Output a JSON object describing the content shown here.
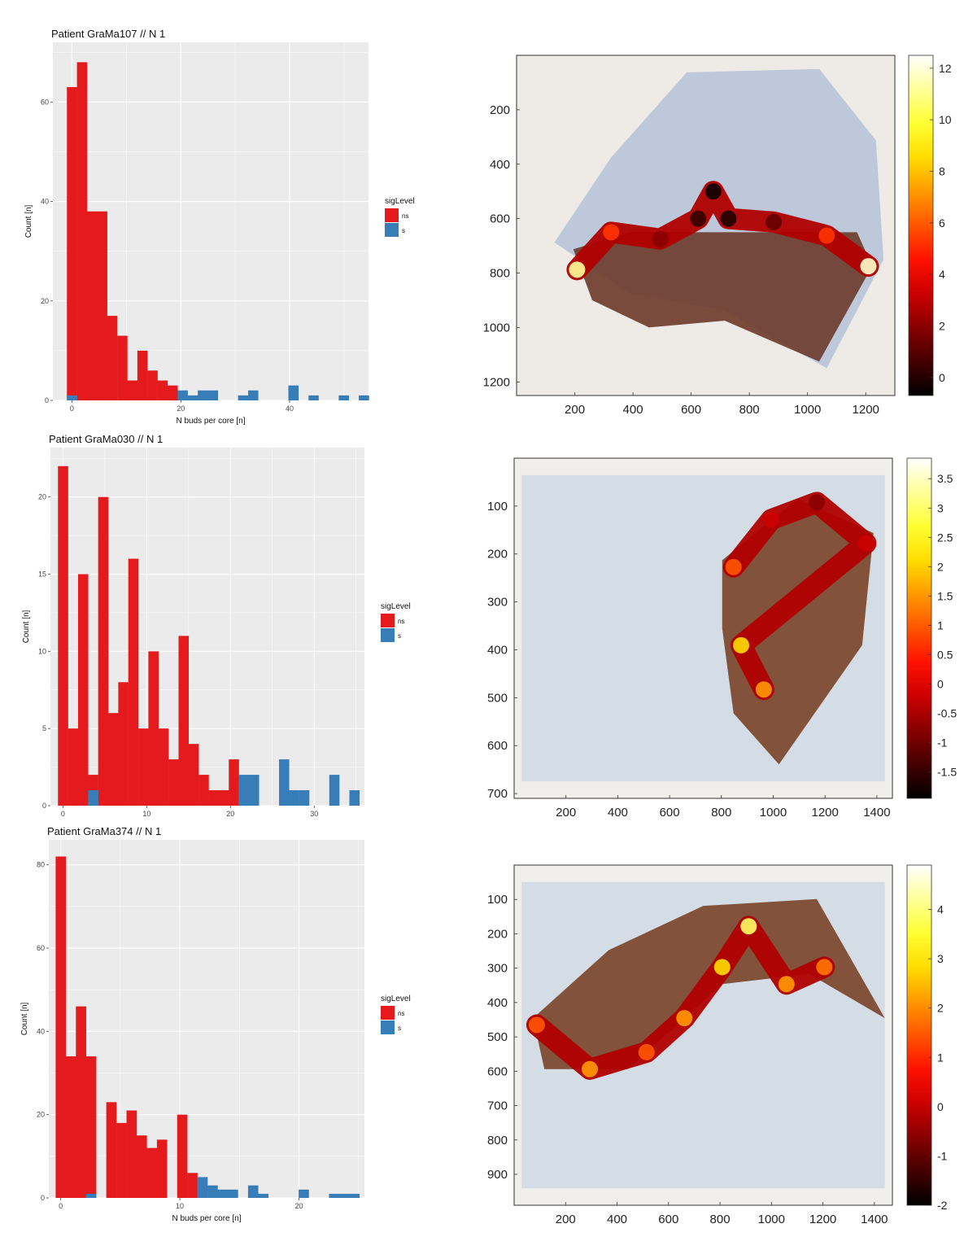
{
  "chart_data": [
    {
      "type": "bar",
      "title": "Patient  GraMa107  //  N 1",
      "xlabel": "N buds per core [n]",
      "ylabel": "Count [n]",
      "xlim": [
        -3.5,
        54.5
      ],
      "ylim": [
        0,
        72
      ],
      "xticks": [
        0,
        20,
        40
      ],
      "yticks": [
        0,
        20,
        40,
        60
      ],
      "binwidth": 1.85,
      "legend_title": "sigLevel",
      "series": [
        {
          "name": "ns",
          "color": "#e41a1c",
          "x": [
            0,
            1.85,
            3.7,
            5.55,
            7.4,
            9.25,
            11.1,
            12.95,
            14.8,
            16.65,
            18.5
          ],
          "values": [
            63,
            68,
            38,
            38,
            17,
            13,
            4,
            10,
            6,
            4,
            3
          ]
        },
        {
          "name": "s",
          "color": "#377eb8",
          "x": [
            0,
            20.35,
            22.2,
            24.05,
            25.9,
            31.45,
            33.3,
            40.7,
            44.4,
            49.95,
            53.65
          ],
          "values": [
            1,
            2,
            1,
            2,
            2,
            1,
            2,
            3,
            1,
            1,
            1
          ]
        }
      ]
    },
    {
      "type": "bar",
      "title": "Patient  GraMa030  //  N 1",
      "xlabel": "",
      "ylabel": "Count [n]",
      "xlim": [
        -1.5,
        36
      ],
      "ylim": [
        0,
        23.2
      ],
      "xticks": [
        0,
        10,
        20,
        30
      ],
      "yticks": [
        0,
        5,
        10,
        15,
        20
      ],
      "binwidth": 1.2,
      "legend_title": "sigLevel",
      "series": [
        {
          "name": "ns",
          "color": "#e41a1c",
          "x": [
            0,
            1.2,
            2.4,
            3.6,
            4.8,
            6.0,
            7.2,
            8.4,
            9.6,
            10.8,
            12.0,
            13.2,
            14.4,
            15.6,
            16.8,
            18.0,
            19.2,
            20.4
          ],
          "values": [
            22,
            5,
            15,
            2,
            20,
            6,
            8,
            16,
            5,
            10,
            5,
            3,
            11,
            4,
            2,
            1,
            1,
            3
          ]
        },
        {
          "name": "s",
          "color": "#377eb8",
          "x": [
            3.6,
            21.6,
            22.8,
            26.4,
            27.6,
            28.8,
            32.4,
            34.8
          ],
          "values": [
            1,
            2,
            2,
            3,
            1,
            1,
            2,
            1
          ]
        }
      ]
    },
    {
      "type": "bar",
      "title": "Patient  GraMa374  //  N 1",
      "xlabel": "N buds per core [n]",
      "ylabel": "Count [n]",
      "xlim": [
        -1,
        25.5
      ],
      "ylim": [
        0,
        86
      ],
      "xticks": [
        0,
        10,
        20
      ],
      "yticks": [
        0,
        20,
        40,
        60,
        80
      ],
      "binwidth": 0.85,
      "legend_title": "sigLevel",
      "series": [
        {
          "name": "ns",
          "color": "#e41a1c",
          "x": [
            0,
            0.85,
            1.7,
            2.55,
            4.25,
            5.1,
            5.95,
            6.8,
            7.65,
            8.5,
            10.2,
            11.05
          ],
          "values": [
            82,
            34,
            46,
            34,
            23,
            18,
            21,
            15,
            12,
            14,
            20,
            6
          ]
        },
        {
          "name": "s",
          "color": "#377eb8",
          "x": [
            2.55,
            11.9,
            12.75,
            13.6,
            14.45,
            16.15,
            17.0,
            20.4,
            22.95,
            23.8,
            24.65
          ],
          "values": [
            1,
            5,
            3,
            2,
            2,
            3,
            1,
            2,
            1,
            1,
            1
          ]
        }
      ]
    },
    {
      "type": "heatmap",
      "title": "",
      "xticks": [
        200,
        400,
        600,
        800,
        1000,
        1200
      ],
      "yticks": [
        200,
        400,
        600,
        800,
        1000,
        1200
      ],
      "xlim": [
        0,
        1300
      ],
      "ylim": [
        0,
        1250
      ],
      "colorbar": {
        "ticks": [
          0,
          2,
          4,
          6,
          8,
          10,
          12
        ],
        "range": [
          -0.7,
          12.5
        ],
        "colormap": "hot"
      }
    },
    {
      "type": "heatmap",
      "title": "",
      "xticks": [
        200,
        400,
        600,
        800,
        1000,
        1200,
        1400
      ],
      "yticks": [
        100,
        200,
        300,
        400,
        500,
        600,
        700
      ],
      "xlim": [
        0,
        1460
      ],
      "ylim": [
        0,
        710
      ],
      "colorbar": {
        "ticks": [
          "-1.5",
          "-1",
          "-0.5",
          "0",
          "0.5",
          "1",
          "1.5",
          "2",
          "2.5",
          "3",
          "3.5"
        ],
        "range": [
          -1.95,
          3.85
        ],
        "colormap": "hot"
      }
    },
    {
      "type": "heatmap",
      "title": "",
      "xticks": [
        200,
        400,
        600,
        800,
        1000,
        1200,
        1400
      ],
      "yticks": [
        100,
        200,
        300,
        400,
        500,
        600,
        700,
        800,
        900
      ],
      "xlim": [
        0,
        1470
      ],
      "ylim": [
        0,
        990
      ],
      "colorbar": {
        "ticks": [
          "-2",
          "-1",
          "0",
          "1",
          "2",
          "3",
          "4"
        ],
        "range": [
          -2.0,
          4.9
        ],
        "colormap": "hot"
      }
    }
  ]
}
